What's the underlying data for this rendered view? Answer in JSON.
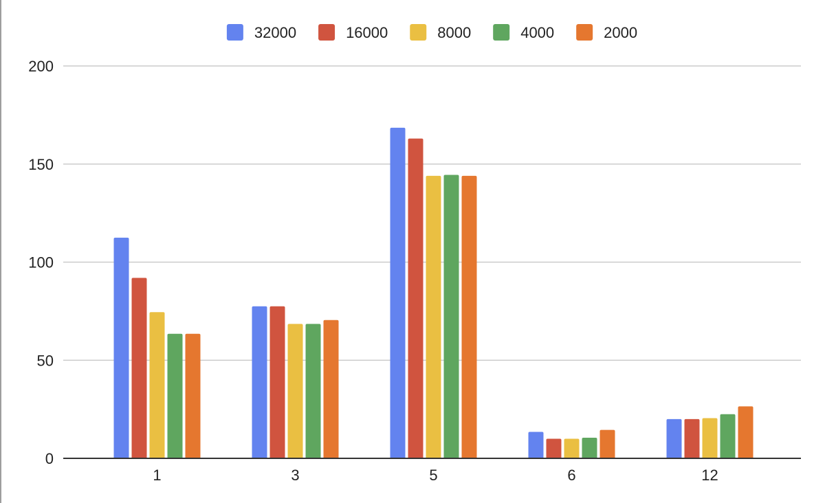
{
  "chart_data": {
    "type": "bar",
    "categories": [
      "1",
      "3",
      "5",
      "6",
      "12"
    ],
    "series": [
      {
        "name": "32000",
        "color": "#6383ef",
        "values": [
          112.5,
          77.5,
          168.5,
          13.5,
          20
        ]
      },
      {
        "name": "16000",
        "color": "#d0543f",
        "values": [
          92,
          77.5,
          163,
          10,
          20
        ]
      },
      {
        "name": "8000",
        "color": "#eabf42",
        "values": [
          74.5,
          68.5,
          144,
          10,
          20.5
        ]
      },
      {
        "name": "4000",
        "color": "#5fa65f",
        "values": [
          63.5,
          68.5,
          144.5,
          10.5,
          22.5
        ]
      },
      {
        "name": "2000",
        "color": "#e5772f",
        "values": [
          63.5,
          70.5,
          144,
          14.5,
          26.5
        ]
      }
    ],
    "yticks": [
      "0",
      "50",
      "100",
      "150",
      "200"
    ],
    "ylim": [
      0,
      200
    ],
    "grid": true,
    "legend_position": "top",
    "title": "",
    "xlabel": "",
    "ylabel": ""
  }
}
